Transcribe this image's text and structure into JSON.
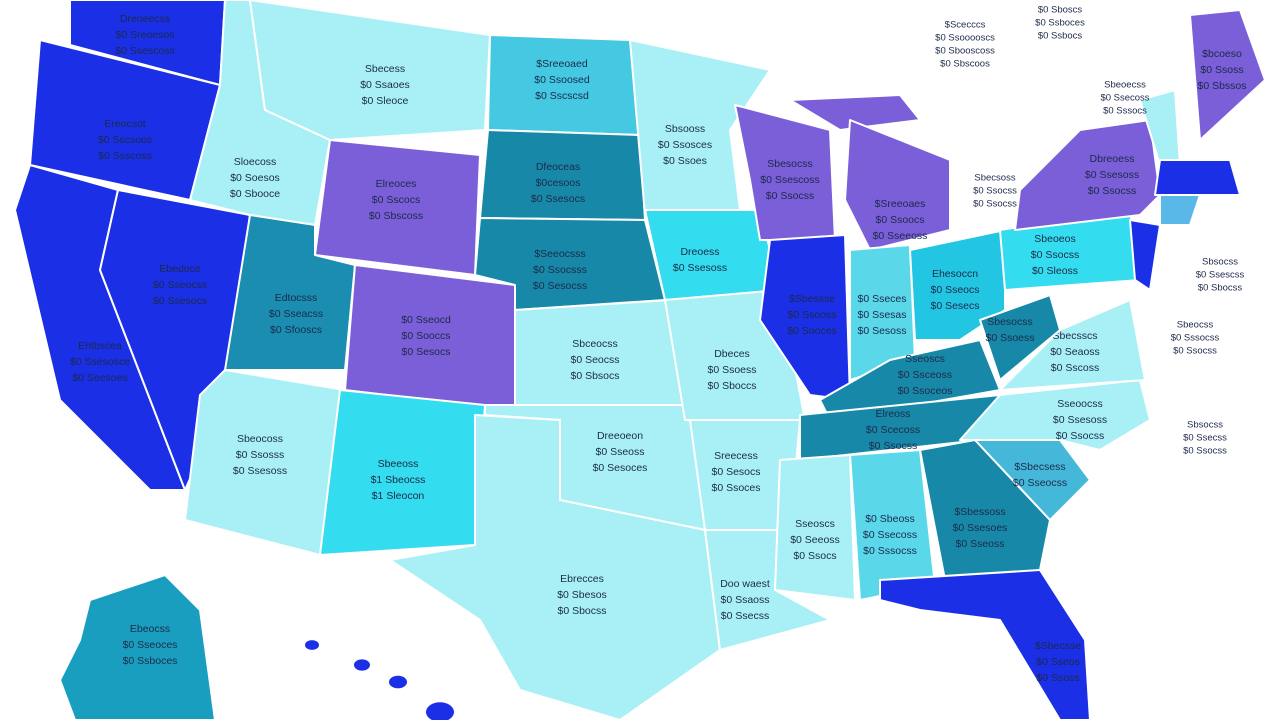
{
  "map": {
    "states": [
      {
        "color": "#1a2fe6",
        "label": [
          "Dreoeecss",
          "$0 Sreoesos",
          "$0 Ssescoss"
        ]
      },
      {
        "color": "#1a2fe6",
        "label": [
          "Ereocsot",
          "$0 Sscsoos",
          "$0 Ssscoss"
        ]
      },
      {
        "color": "#1a2fe6",
        "label": [
          "Ehtbscea",
          "$0 Ssesosce",
          "$0 Seesoes"
        ]
      },
      {
        "color": "#1a2fe6",
        "label": [
          "Ebedoce",
          "$0 Sseocss",
          "$0 Ssesocs"
        ]
      },
      {
        "color": "#a8f0f6",
        "label": [
          "Sloecoss",
          "$0 Soesos",
          "$0 Sbooce"
        ]
      },
      {
        "color": "#a8f0f6",
        "label": [
          "Sbecess",
          "$0 Ssaoes",
          "$0 Sleoce"
        ]
      },
      {
        "color": "#7a5fd8",
        "label": [
          "Elreoces",
          "$0 Sscocs",
          "$0 Sbscoss"
        ]
      },
      {
        "color": "#1a8db0",
        "label": [
          "Edtocsss",
          "$0 Sseacss",
          "$0 Sfooscs"
        ]
      },
      {
        "color": "#7a5fd8",
        "label": [
          "$0 Sseocd",
          "$0 Sooccs",
          "$0 Sesocs"
        ]
      },
      {
        "color": "#a8f0f6",
        "label": [
          "Sbeocoss",
          "$0 Ssosss",
          "$0 Ssesoss"
        ]
      },
      {
        "color": "#33dcee",
        "label": [
          "Sbeeoss",
          "$1 Sbeocss",
          "$1 Sleocon"
        ]
      },
      {
        "color": "#45c8e2",
        "label": [
          "$Sreeoaed",
          "$0 Ssoosed",
          "$0 Sscscsd"
        ]
      },
      {
        "color": "#1888a8",
        "label": [
          "Dfeoceas",
          "$0cesoos",
          "$0 Ssesocs"
        ]
      },
      {
        "color": "#1888a8",
        "label": [
          "$Seeocsss",
          "$0 Ssocsss",
          "$0 Sesocss"
        ]
      },
      {
        "color": "#a8f0f6",
        "label": [
          "Sbceocss",
          "$0 Seocss",
          "$0 Sbsocs"
        ]
      },
      {
        "color": "#a8f0f6",
        "label": [
          "Dreeoeon",
          "$0 Sseoss",
          "$0 Sesoces"
        ]
      },
      {
        "color": "#a8f0f6",
        "label": [
          "Ebrecces",
          "$0 Sbesos",
          "$0 Sbocss"
        ]
      },
      {
        "color": "#a8f0f6",
        "label": [
          "Sbsooss",
          "$0 Ssosces",
          "$0 Ssoes"
        ]
      },
      {
        "color": "#33dcee",
        "label": [
          "Dreoess",
          "$0 Ssesoss"
        ]
      },
      {
        "color": "#a8f0f6",
        "label": [
          "Dbeces",
          "$0 Ssoess",
          "$0 Sboccs"
        ]
      },
      {
        "color": "#a8f0f6",
        "label": [
          "Sreecess",
          "$0 Sesocs",
          "$0 Ssoces"
        ]
      },
      {
        "color": "#a8f0f6",
        "label": [
          "Doo waest",
          "$0 Ssaoss",
          "$0 Ssecss"
        ]
      },
      {
        "color": "#7a5fd8",
        "label": [
          "Sbesocss",
          "$0 Ssescoss",
          "$0 Ssocss"
        ]
      },
      {
        "color": "#7a5fd8",
        "label": [
          "$Sreeoaes",
          "$0 Ssoocs",
          "$0 Sseeoss"
        ]
      },
      {
        "color": "#1a2fe6",
        "label": [
          "$Sbessse",
          "$0 Ssooss",
          "$0 Sooces"
        ]
      },
      {
        "color": "#5ad8ea",
        "label": [
          "$0 Sseces",
          "$0 Ssesas",
          "$0 Sesoss"
        ]
      },
      {
        "color": "#22c6e2",
        "label": [
          "Ehesoccn",
          "$0 Sseocs",
          "$0 Sesecs"
        ]
      },
      {
        "color": "#1888a8",
        "label": [
          "Sseoscs",
          "$0 Ssceoss",
          "$0 Ssoceos"
        ]
      },
      {
        "color": "#1888a8",
        "label": [
          "Elreoss",
          "$0 Scecoss",
          "$0 Ssocss"
        ]
      },
      {
        "color": "#a8f0f6",
        "label": [
          "Sseoscs",
          "$0 Seeoss",
          "$0 Ssocs"
        ]
      },
      {
        "color": "#5ad8ea",
        "label": [
          "$0 Sbeoss",
          "$0 Ssecoss",
          "$0 Sssocss"
        ]
      },
      {
        "color": "#1888a8",
        "label": [
          "$Sbessoss",
          "$0 Ssesoes",
          "$0 Sseoss"
        ]
      },
      {
        "color": "#1a2fe6",
        "label": [
          "$Sbecsse",
          "$0 Sseos",
          "$0 Ssoss"
        ]
      },
      {
        "color": "#45b8da",
        "label": [
          "$Sbecsess",
          "$0 Sseocss"
        ]
      },
      {
        "color": "#a8f0f6",
        "label": [
          "Sseoocss",
          "$0 Ssesoss",
          "$0 Ssocss"
        ]
      },
      {
        "color": "#a8f0f6",
        "label": [
          "Sbecsscs",
          "$0 Seaoss",
          "$0 Sscoss"
        ]
      },
      {
        "color": "#1888a8",
        "label": [
          "Sbesocss",
          "$0 Ssoess"
        ]
      },
      {
        "color": "#33dcee",
        "label": [
          "Sbeoeos",
          "$0 Ssocss",
          "$0 Sleoss"
        ]
      },
      {
        "color": "#7a5fd8",
        "label": [
          "Dbreoess",
          "$0 Ssesoss",
          "$0 Ssocss"
        ]
      },
      {
        "color": "#1a2fe6",
        "label": []
      },
      {
        "color": "#7a5fd8",
        "label": [
          "$bcoeso",
          "$0 Ssoss",
          "$0 Sbssos"
        ]
      },
      {
        "color": "#a8f0f6",
        "label": []
      },
      {
        "color": "#1a2fe6",
        "label": []
      },
      {
        "color": "#5ab8e8",
        "label": []
      },
      {
        "color": "#1a9ec0",
        "label": [
          "Ebeocss",
          "$0 Sseoces",
          "$0 Ssboces"
        ]
      }
    ],
    "notes": [
      {
        "lines": [
          "$Scecccs",
          "$0 Ssooooscs",
          "$0 Sbooscoss",
          "$0 Sbscoos"
        ]
      },
      {
        "lines": [
          "$0 Sboscs",
          "$0 Ssboces",
          "$0 Ssbocs"
        ]
      },
      {
        "lines": [
          "Sbeoecss",
          "$0 Ssecoss",
          "$0 Sssocs"
        ]
      },
      {
        "lines": [
          "Sbecsoss",
          "$0 Ssocss",
          "$0 Ssocss"
        ]
      },
      {
        "lines": [
          "Sbsocss",
          "$0 Ssescss",
          "$0 Sbocss"
        ]
      },
      {
        "lines": [
          "Sbeocss",
          "$0 Sssocss",
          "$0 Ssocss"
        ]
      },
      {
        "lines": [
          "Sbsocss",
          "$0 Ssecss",
          "$0 Ssocss"
        ]
      }
    ]
  }
}
